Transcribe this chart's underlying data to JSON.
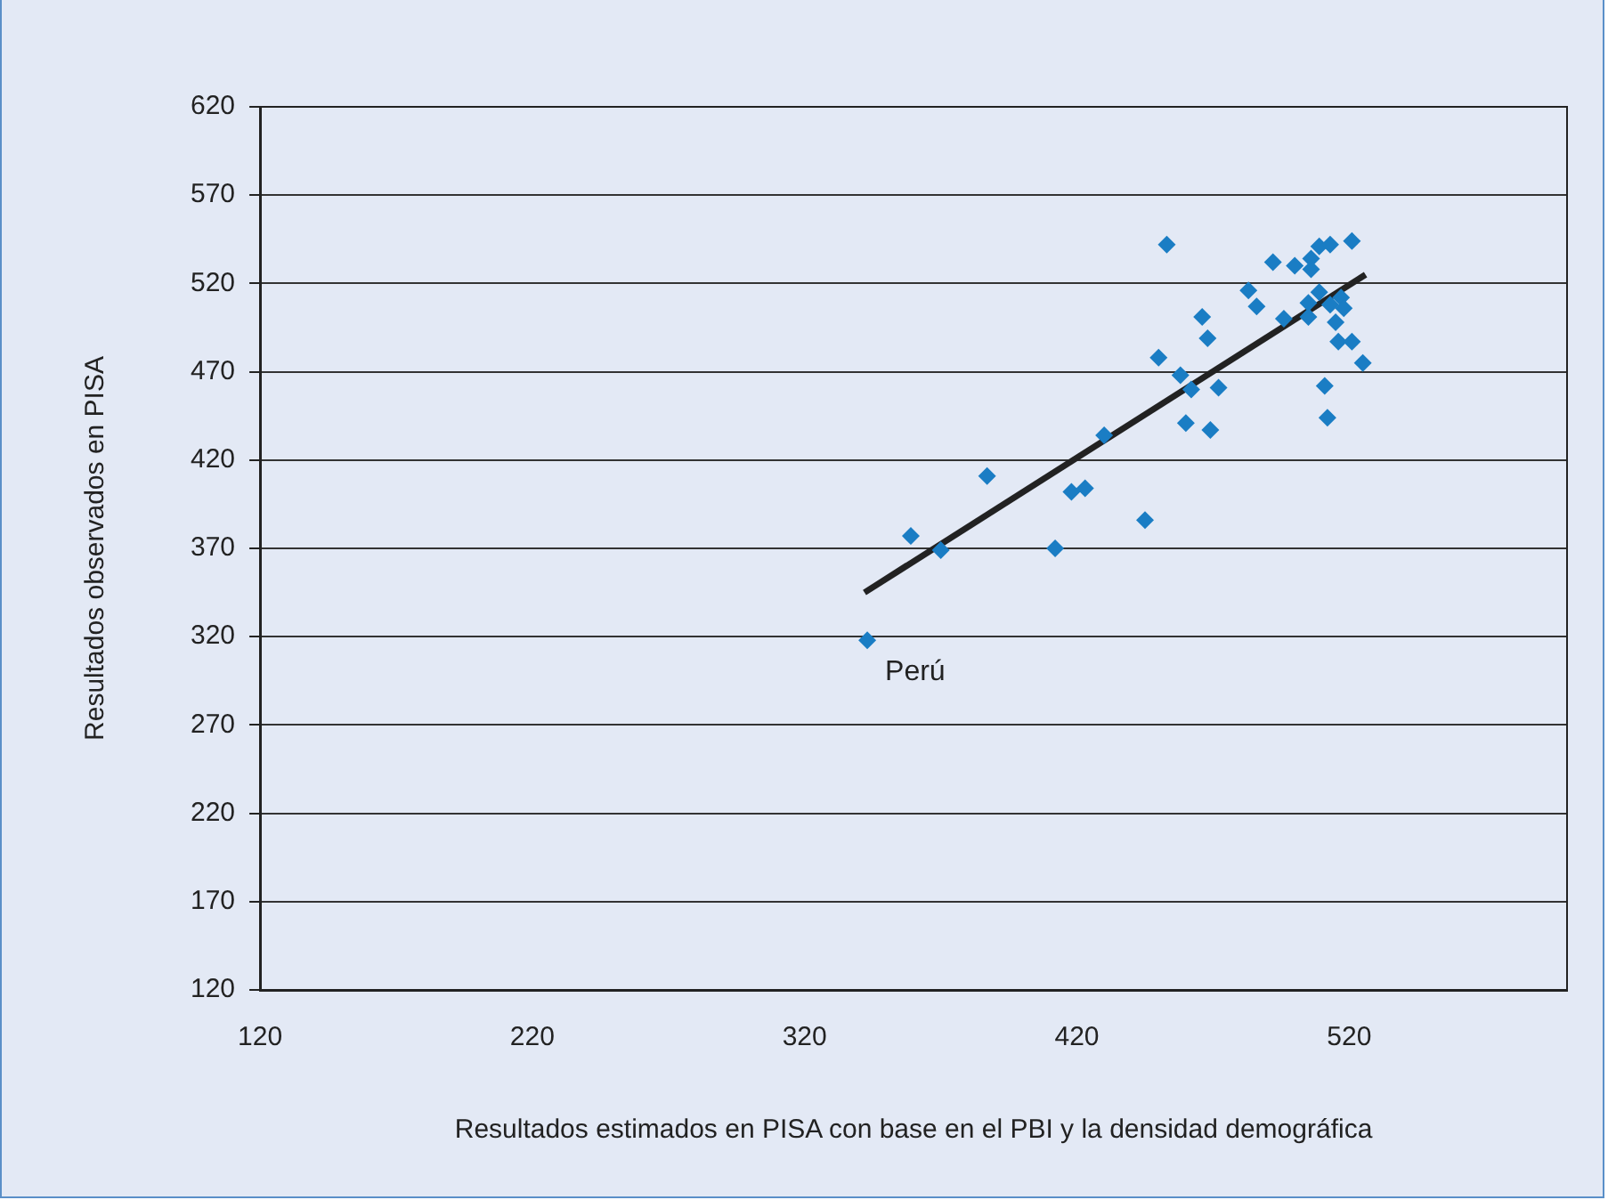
{
  "chart_data": {
    "type": "scatter",
    "xlabel": "Resultados estimados en PISA con base en el PBI y la densidad demográfica",
    "ylabel": "Resultados observados en PISA",
    "xlim": [
      120,
      600
    ],
    "xticks": [
      120,
      220,
      320,
      420,
      520
    ],
    "ylim": [
      120,
      620
    ],
    "yticks": [
      120,
      170,
      220,
      270,
      320,
      370,
      420,
      470,
      520,
      570,
      620
    ],
    "grid": "y",
    "legend": false,
    "marker": "diamond",
    "series": [
      {
        "type": "scatter",
        "color": "#1a7dc4",
        "x": [
          453,
          492,
          500,
          506,
          506,
          509,
          513,
          521,
          483,
          486,
          496,
          505,
          509,
          505,
          513,
          517,
          518,
          515,
          516,
          521,
          525,
          511,
          512,
          466,
          468,
          450,
          458,
          462,
          472,
          460,
          469,
          430,
          387,
          418,
          423,
          445,
          412,
          359,
          370,
          343
        ],
        "values": [
          542,
          532,
          530,
          534,
          528,
          541,
          542,
          544,
          516,
          507,
          500,
          509,
          515,
          501,
          508,
          512,
          506,
          498,
          487,
          487,
          475,
          462,
          444,
          501,
          489,
          478,
          468,
          460,
          461,
          441,
          437,
          434,
          411,
          402,
          404,
          386,
          370,
          377,
          369,
          318
        ]
      },
      {
        "type": "line",
        "color": "#222222",
        "marker": "none",
        "x": [
          342,
          526
        ],
        "values": [
          345,
          525
        ]
      }
    ],
    "annotations": [
      {
        "text": "Perú",
        "x": 343,
        "y": 318
      }
    ]
  }
}
